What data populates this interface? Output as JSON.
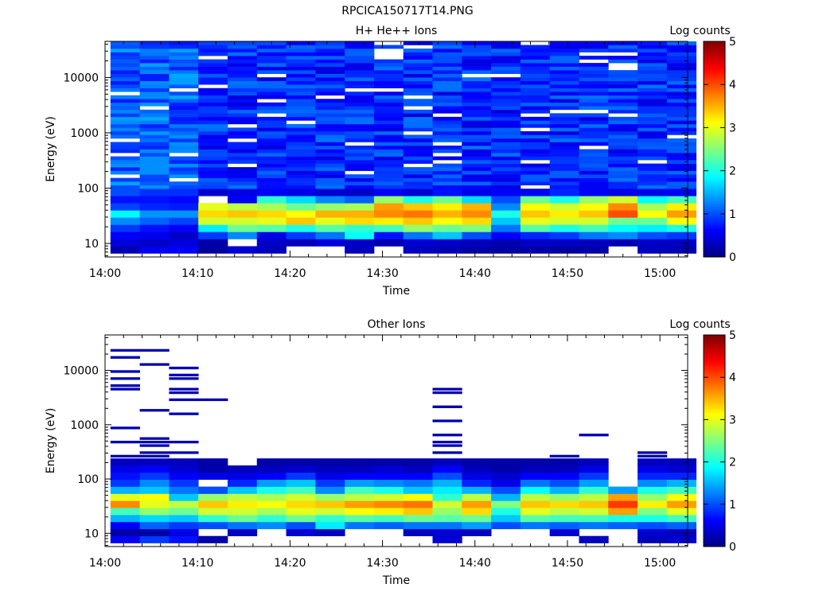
{
  "figure_title": "RPCICA150717T14.PNG",
  "chart_data": [
    {
      "type": "heatmap",
      "title": "H+ He++ Ions",
      "xlabel": "Time",
      "ylabel": "Energy (eV)",
      "x_ticks": [
        "14:00",
        "14:10",
        "14:20",
        "14:30",
        "14:40",
        "14:50",
        "15:00"
      ],
      "x_range": [
        "14:00",
        "15:03"
      ],
      "y_scale": "log",
      "y_ticks": [
        "10",
        "100",
        "1000",
        "10000"
      ],
      "y_range": [
        5.7,
        45000
      ],
      "colorbar": {
        "label": "Log counts",
        "ticks": [
          "0",
          "1",
          "2",
          "3",
          "4",
          "5"
        ],
        "range": [
          0,
          5
        ]
      },
      "time_bins": [
        "14:02:10",
        "14:05:20",
        "14:08:30",
        "14:11:40",
        "14:14:50",
        "14:18:00",
        "14:21:10",
        "14:24:20",
        "14:27:30",
        "14:30:40",
        "14:33:50",
        "14:37:00",
        "14:40:10",
        "14:43:20",
        "14:46:30",
        "14:49:40",
        "14:52:50",
        "14:56:00",
        "14:59:10",
        "15:02:20"
      ],
      "profile_energy_bins_eV": [
        8,
        11,
        15,
        20,
        26,
        34,
        45,
        60,
        80
      ],
      "profile_log_counts": [
        [
          0.25,
          0.45,
          0.6,
          0.9,
          1.3,
          1.85,
          0.95,
          0.7,
          1.0
        ],
        [
          0.55,
          0.35,
          0.55,
          0.7,
          1.1,
          1.35,
          0.8,
          0.7,
          0.85
        ],
        [
          0.6,
          0.45,
          0.35,
          0.6,
          0.95,
          1.35,
          0.75,
          0.65,
          0.85
        ],
        [
          0.15,
          0.2,
          0.9,
          1.8,
          2.9,
          3.3,
          3.0,
          null,
          0.4
        ],
        [
          0.4,
          null,
          1.3,
          2.4,
          2.9,
          3.4,
          2.8,
          0.6,
          0.5
        ],
        [
          0.3,
          0.35,
          0.5,
          2.3,
          3.0,
          3.3,
          2.7,
          2.1,
          0.6
        ],
        [
          null,
          0.3,
          0.9,
          2.0,
          3.4,
          3.1,
          2.4,
          1.7,
          0.5
        ],
        [
          null,
          0.45,
          1.2,
          2.3,
          3.0,
          3.5,
          2.6,
          1.3,
          0.4
        ],
        [
          0.3,
          0.35,
          1.9,
          2.1,
          3.3,
          3.5,
          2.7,
          1.1,
          0.35
        ],
        [
          null,
          0.25,
          0.7,
          2.2,
          3.2,
          3.7,
          3.6,
          2.6,
          0.6
        ],
        [
          0.3,
          0.4,
          1.2,
          2.6,
          3.4,
          3.8,
          3.4,
          2.0,
          0.4
        ],
        [
          0.25,
          0.35,
          1.6,
          2.4,
          3.1,
          3.5,
          3.2,
          2.4,
          0.7
        ],
        [
          0.2,
          0.3,
          1.0,
          2.5,
          3.3,
          3.7,
          3.5,
          1.7,
          0.5
        ],
        [
          0.15,
          0.25,
          0.6,
          1.2,
          1.6,
          2.0,
          1.3,
          1.0,
          0.6
        ],
        [
          0.2,
          0.35,
          0.8,
          2.3,
          3.0,
          3.4,
          3.1,
          2.4,
          0.6
        ],
        [
          0.15,
          0.35,
          0.9,
          2.0,
          2.9,
          3.2,
          2.9,
          2.0,
          0.8
        ],
        [
          0.2,
          0.3,
          1.2,
          2.2,
          2.9,
          3.4,
          3.1,
          2.6,
          0.6
        ],
        [
          null,
          0.25,
          1.3,
          1.9,
          2.4,
          4.0,
          3.7,
          2.9,
          0.5
        ],
        [
          0.3,
          0.35,
          1.0,
          1.8,
          2.4,
          3.1,
          2.7,
          1.9,
          0.5
        ],
        [
          0.25,
          0.35,
          0.9,
          2.0,
          3.1,
          3.6,
          3.2,
          2.2,
          0.6
        ]
      ],
      "background_note": "Above ~90 eV the spectrogram is a speckled background of about 0.5-1.3 log counts with scattered empty bins"
    },
    {
      "type": "heatmap",
      "title": "Other Ions",
      "xlabel": "Time",
      "ylabel": "Energy (eV)",
      "x_ticks": [
        "14:00",
        "14:10",
        "14:20",
        "14:30",
        "14:40",
        "14:50",
        "15:00"
      ],
      "x_range": [
        "14:00",
        "15:03"
      ],
      "y_scale": "log",
      "y_ticks": [
        "10",
        "100",
        "1000",
        "10000"
      ],
      "y_range": [
        5.7,
        45000
      ],
      "colorbar": {
        "label": "Log counts",
        "ticks": [
          "0",
          "1",
          "2",
          "3",
          "4",
          "5"
        ],
        "range": [
          0,
          5
        ]
      },
      "time_bins": [
        "14:02:10",
        "14:05:20",
        "14:08:30",
        "14:11:40",
        "14:14:50",
        "14:18:00",
        "14:21:10",
        "14:24:20",
        "14:27:30",
        "14:30:40",
        "14:33:50",
        "14:37:00",
        "14:40:10",
        "14:43:20",
        "14:46:30",
        "14:49:40",
        "14:52:50",
        "14:56:00",
        "14:59:10",
        "15:02:20"
      ],
      "profile_energy_bins_eV": [
        8,
        11,
        15,
        20,
        26,
        34,
        45,
        60,
        80,
        110,
        150,
        200
      ],
      "profile_log_counts": [
        [
          0.6,
          0.2,
          0.6,
          1.5,
          2.2,
          3.7,
          3.0,
          1.5,
          0.9,
          0.7,
          0.5,
          0.3
        ],
        [
          0.9,
          0.2,
          1.1,
          1.7,
          2.6,
          3.0,
          3.1,
          1.6,
          1.3,
          0.9,
          0.6,
          0.3
        ],
        [
          0.7,
          0.5,
          0.9,
          1.6,
          2.4,
          2.8,
          1.6,
          1.2,
          0.9,
          0.6,
          0.4,
          0.3
        ],
        [
          0.2,
          null,
          1.0,
          2.1,
          2.9,
          3.4,
          2.6,
          1.0,
          null,
          0.5,
          0.2,
          0.2
        ],
        [
          null,
          0.3,
          1.2,
          2.4,
          2.9,
          3.2,
          2.8,
          1.6,
          0.8,
          0.5,
          0.3,
          null
        ],
        [
          null,
          null,
          1.3,
          2.1,
          2.7,
          3.1,
          2.7,
          2.0,
          1.4,
          0.6,
          0.3,
          0.2
        ],
        [
          null,
          0.4,
          1.0,
          2.4,
          3.0,
          3.3,
          2.9,
          2.2,
          1.6,
          0.9,
          0.4,
          0.2
        ],
        [
          null,
          0.3,
          1.8,
          2.1,
          2.9,
          3.4,
          2.6,
          1.3,
          0.9,
          0.5,
          0.3,
          0.2
        ],
        [
          null,
          null,
          1.2,
          2.3,
          3.1,
          3.6,
          2.8,
          2.2,
          1.4,
          0.6,
          0.3,
          0.2
        ],
        [
          null,
          null,
          1.1,
          2.2,
          3.2,
          3.7,
          2.9,
          2.0,
          1.3,
          0.6,
          0.4,
          0.2
        ],
        [
          null,
          0.3,
          1.2,
          2.4,
          3.4,
          3.8,
          3.1,
          1.6,
          1.2,
          0.6,
          0.3,
          0.2
        ],
        [
          0.4,
          0.4,
          1.2,
          2.3,
          2.6,
          2.9,
          2.1,
          1.8,
          1.5,
          1.0,
          0.6,
          0.3
        ],
        [
          null,
          0.3,
          1.4,
          2.4,
          3.3,
          3.6,
          2.8,
          1.5,
          0.8,
          0.5,
          0.3,
          0.2
        ],
        [
          null,
          null,
          1.0,
          1.6,
          2.0,
          2.5,
          1.5,
          1.0,
          0.5,
          0.4,
          0.2,
          0.2
        ],
        [
          null,
          null,
          1.2,
          2.3,
          3.0,
          3.4,
          2.8,
          1.9,
          1.2,
          0.6,
          0.3,
          0.2
        ],
        [
          null,
          0.4,
          1.1,
          2.2,
          2.8,
          3.3,
          2.6,
          1.5,
          1.0,
          0.6,
          0.3,
          0.2
        ],
        [
          0.3,
          null,
          1.2,
          2.2,
          2.9,
          3.4,
          2.8,
          2.1,
          1.4,
          0.9,
          0.5,
          0.3
        ],
        [
          null,
          null,
          1.1,
          2.0,
          3.6,
          4.1,
          3.6,
          1.4,
          null,
          null,
          null,
          null
        ],
        [
          0.3,
          0.4,
          1.0,
          2.0,
          2.5,
          3.2,
          2.6,
          2.0,
          1.3,
          0.8,
          0.5,
          0.3
        ],
        [
          0.4,
          0.3,
          1.1,
          2.2,
          3.0,
          3.6,
          3.1,
          2.2,
          1.5,
          0.8,
          0.4,
          0.3
        ]
      ],
      "high_energy_traces_eV": [
        [
          22000,
          16000,
          9000,
          7000,
          4800,
          4200,
          800,
          500,
          240
        ],
        [
          23000,
          21500,
          12000,
          1900,
          520,
          450,
          380,
          300,
          250
        ],
        [
          11000,
          8000,
          6500,
          4500,
          3600,
          2800,
          1600,
          480,
          290
        ],
        [
          2800
        ],
        [],
        [],
        [],
        [],
        [],
        [],
        [],
        [
          4500,
          3900,
          2100,
          1200,
          1100,
          600,
          480,
          380,
          300
        ],
        [],
        [],
        [],
        [
          260
        ],
        [
          650
        ],
        [],
        [
          300,
          260
        ],
        []
      ]
    }
  ]
}
